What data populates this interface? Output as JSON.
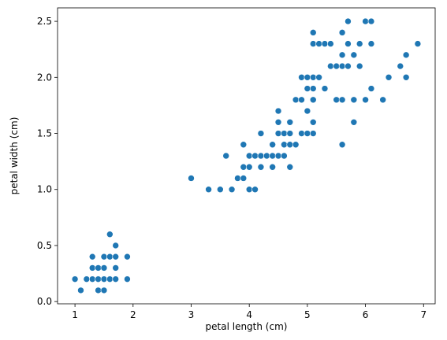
{
  "chart_data": {
    "type": "scatter",
    "title": "",
    "xlabel": "petal length (cm)",
    "ylabel": "petal width (cm)",
    "xlim": [
      0.7,
      7.2
    ],
    "ylim": [
      -0.02,
      2.62
    ],
    "xticks": [
      1,
      2,
      3,
      4,
      5,
      6,
      7
    ],
    "xtick_labels": [
      "1",
      "2",
      "3",
      "4",
      "5",
      "6",
      "7"
    ],
    "yticks": [
      0.0,
      0.5,
      1.0,
      1.5,
      2.0,
      2.5
    ],
    "ytick_labels": [
      "0.0",
      "0.5",
      "1.0",
      "1.5",
      "2.0",
      "2.5"
    ],
    "grid": false,
    "legend": "none",
    "color": "#1f77b4",
    "points": [
      [
        1.0,
        0.2
      ],
      [
        1.1,
        0.1
      ],
      [
        1.2,
        0.2
      ],
      [
        1.3,
        0.2
      ],
      [
        1.3,
        0.3
      ],
      [
        1.3,
        0.4
      ],
      [
        1.4,
        0.1
      ],
      [
        1.4,
        0.2
      ],
      [
        1.4,
        0.3
      ],
      [
        1.5,
        0.1
      ],
      [
        1.5,
        0.2
      ],
      [
        1.5,
        0.3
      ],
      [
        1.5,
        0.4
      ],
      [
        1.6,
        0.2
      ],
      [
        1.6,
        0.4
      ],
      [
        1.6,
        0.6
      ],
      [
        1.7,
        0.2
      ],
      [
        1.7,
        0.3
      ],
      [
        1.7,
        0.4
      ],
      [
        1.7,
        0.5
      ],
      [
        1.9,
        0.2
      ],
      [
        1.9,
        0.4
      ],
      [
        3.0,
        1.1
      ],
      [
        3.3,
        1.0
      ],
      [
        3.5,
        1.0
      ],
      [
        3.6,
        1.3
      ],
      [
        3.7,
        1.0
      ],
      [
        3.8,
        1.1
      ],
      [
        3.9,
        1.1
      ],
      [
        3.9,
        1.2
      ],
      [
        3.9,
        1.4
      ],
      [
        4.0,
        1.0
      ],
      [
        4.0,
        1.2
      ],
      [
        4.0,
        1.3
      ],
      [
        4.1,
        1.0
      ],
      [
        4.1,
        1.3
      ],
      [
        4.2,
        1.2
      ],
      [
        4.2,
        1.3
      ],
      [
        4.2,
        1.5
      ],
      [
        4.3,
        1.3
      ],
      [
        4.4,
        1.2
      ],
      [
        4.4,
        1.3
      ],
      [
        4.4,
        1.4
      ],
      [
        4.5,
        1.3
      ],
      [
        4.5,
        1.5
      ],
      [
        4.5,
        1.6
      ],
      [
        4.5,
        1.7
      ],
      [
        4.6,
        1.3
      ],
      [
        4.6,
        1.4
      ],
      [
        4.6,
        1.5
      ],
      [
        4.7,
        1.2
      ],
      [
        4.7,
        1.4
      ],
      [
        4.7,
        1.5
      ],
      [
        4.7,
        1.6
      ],
      [
        4.8,
        1.4
      ],
      [
        4.8,
        1.8
      ],
      [
        4.9,
        1.5
      ],
      [
        4.9,
        1.8
      ],
      [
        4.9,
        2.0
      ],
      [
        5.0,
        1.5
      ],
      [
        5.0,
        1.7
      ],
      [
        5.0,
        1.9
      ],
      [
        5.0,
        2.0
      ],
      [
        5.1,
        1.5
      ],
      [
        5.1,
        1.6
      ],
      [
        5.1,
        1.8
      ],
      [
        5.1,
        1.9
      ],
      [
        5.1,
        2.0
      ],
      [
        5.1,
        2.3
      ],
      [
        5.1,
        2.4
      ],
      [
        5.2,
        2.0
      ],
      [
        5.2,
        2.3
      ],
      [
        5.3,
        1.9
      ],
      [
        5.3,
        2.3
      ],
      [
        5.4,
        2.1
      ],
      [
        5.4,
        2.3
      ],
      [
        5.5,
        1.8
      ],
      [
        5.5,
        2.1
      ],
      [
        5.6,
        1.4
      ],
      [
        5.6,
        1.8
      ],
      [
        5.6,
        2.1
      ],
      [
        5.6,
        2.2
      ],
      [
        5.6,
        2.4
      ],
      [
        5.7,
        2.1
      ],
      [
        5.7,
        2.3
      ],
      [
        5.7,
        2.5
      ],
      [
        5.8,
        1.6
      ],
      [
        5.8,
        1.8
      ],
      [
        5.8,
        2.2
      ],
      [
        5.9,
        2.1
      ],
      [
        5.9,
        2.3
      ],
      [
        6.0,
        1.8
      ],
      [
        6.0,
        2.5
      ],
      [
        6.1,
        1.9
      ],
      [
        6.1,
        2.3
      ],
      [
        6.1,
        2.5
      ],
      [
        6.3,
        1.8
      ],
      [
        6.4,
        2.0
      ],
      [
        6.6,
        2.1
      ],
      [
        6.7,
        2.0
      ],
      [
        6.7,
        2.2
      ],
      [
        6.9,
        2.3
      ]
    ]
  }
}
